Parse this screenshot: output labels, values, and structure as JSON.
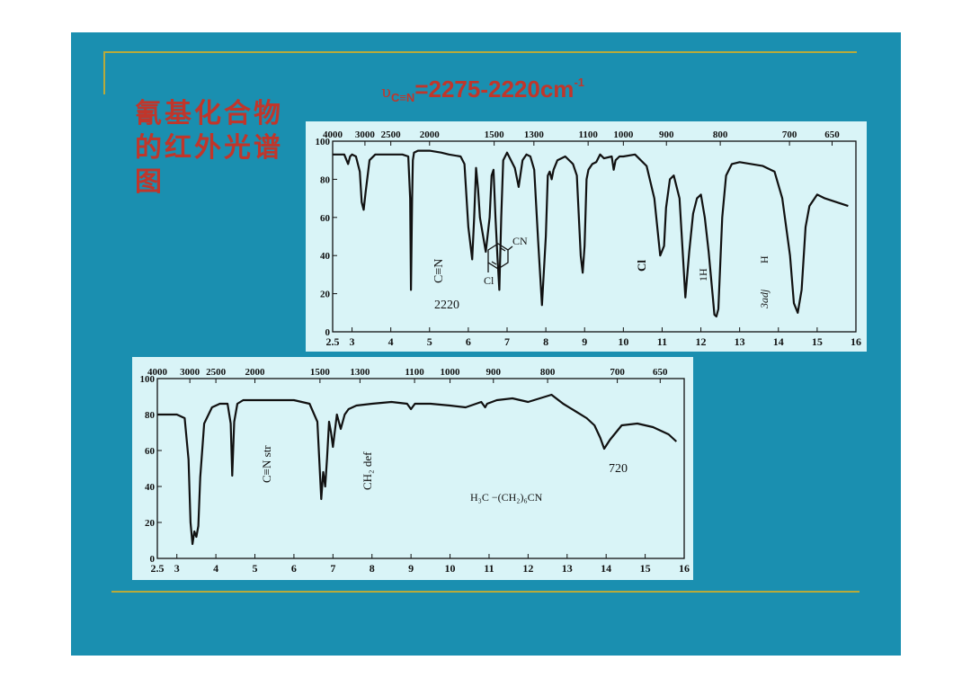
{
  "slide": {
    "title": "氰基化合物的红外光谱图",
    "formula": {
      "nu": "υ",
      "sub": "C≡N",
      "range": "=2275-2220cm",
      "sup": "-1"
    }
  },
  "colors": {
    "slide_bg": "#1a8fb0",
    "panel_bg": "#d9f4f7",
    "title": "#c0362b",
    "rule": "#b8aa3a",
    "line": "#111111"
  },
  "chart_data": [
    {
      "type": "line",
      "title": "",
      "xlabel": "",
      "ylabel": "",
      "x_axis_scale": "wavelength (µm)",
      "xlim": [
        2.5,
        16
      ],
      "ylim": [
        0,
        100
      ],
      "yticks": [
        "0",
        "20",
        "40",
        "60",
        "80",
        "100"
      ],
      "bottom_ticks": [
        {
          "x": 2.5,
          "label": "2.5"
        },
        {
          "x": 3,
          "label": "3"
        },
        {
          "x": 4,
          "label": "4"
        },
        {
          "x": 5,
          "label": "5"
        },
        {
          "x": 6,
          "label": "6"
        },
        {
          "x": 7,
          "label": "7"
        },
        {
          "x": 8,
          "label": "8"
        },
        {
          "x": 9,
          "label": "9"
        },
        {
          "x": 10,
          "label": "10"
        },
        {
          "x": 11,
          "label": "11"
        },
        {
          "x": 12,
          "label": "12"
        },
        {
          "x": 13,
          "label": "13"
        },
        {
          "x": 14,
          "label": "14"
        },
        {
          "x": 15,
          "label": "15"
        },
        {
          "x": 16,
          "label": "16"
        }
      ],
      "top_ticks": [
        {
          "x": 2.5,
          "label": "4000"
        },
        {
          "x": 3.333,
          "label": "3000"
        },
        {
          "x": 4.0,
          "label": "2500"
        },
        {
          "x": 5.0,
          "label": "2000"
        },
        {
          "x": 6.667,
          "label": "1500"
        },
        {
          "x": 7.692,
          "label": "1300"
        },
        {
          "x": 9.091,
          "label": "1100"
        },
        {
          "x": 10.0,
          "label": "1000"
        },
        {
          "x": 11.111,
          "label": "900"
        },
        {
          "x": 12.5,
          "label": "800"
        },
        {
          "x": 14.286,
          "label": "700"
        },
        {
          "x": 15.385,
          "label": "650"
        }
      ],
      "series": [
        {
          "x": [
            2.5,
            2.8,
            2.9,
            2.95,
            3.0,
            3.1,
            3.2,
            3.25,
            3.3,
            3.35,
            3.45,
            3.6,
            4.0,
            4.3,
            4.45,
            4.5,
            4.52,
            4.55,
            4.57,
            4.6,
            4.7,
            5.0,
            5.3,
            5.5,
            5.8,
            5.9,
            6.0,
            6.1,
            6.15,
            6.2,
            6.25,
            6.3,
            6.45,
            6.55,
            6.6,
            6.65,
            6.7,
            6.75,
            6.8,
            6.85,
            6.9,
            7.0,
            7.2,
            7.3,
            7.4,
            7.5,
            7.6,
            7.7,
            7.8,
            7.9,
            8.0,
            8.05,
            8.1,
            8.15,
            8.2,
            8.3,
            8.5,
            8.7,
            8.8,
            8.9,
            8.95,
            9.0,
            9.05,
            9.1,
            9.2,
            9.3,
            9.4,
            9.5,
            9.7,
            9.75,
            9.8,
            9.9,
            10.0,
            10.3,
            10.6,
            10.8,
            10.95,
            11.05,
            11.1,
            11.2,
            11.3,
            11.45,
            11.55,
            11.6,
            11.7,
            11.8,
            11.9,
            12.0,
            12.1,
            12.2,
            12.3,
            12.35,
            12.4,
            12.45,
            12.55,
            12.65,
            12.8,
            13.0,
            13.3,
            13.6,
            13.9,
            14.1,
            14.3,
            14.4,
            14.5,
            14.6,
            14.7,
            14.8,
            15.0,
            15.2,
            15.5,
            15.8
          ],
          "y": [
            93,
            93,
            88,
            92,
            93,
            92,
            84,
            68,
            64,
            73,
            90,
            93,
            93,
            93,
            92,
            70,
            22,
            70,
            90,
            94,
            95,
            95,
            94,
            93,
            92,
            88,
            55,
            38,
            60,
            86,
            75,
            60,
            42,
            60,
            82,
            85,
            60,
            40,
            22,
            60,
            90,
            94,
            86,
            76,
            90,
            93,
            92,
            85,
            48,
            14,
            50,
            82,
            84,
            80,
            85,
            90,
            92,
            88,
            82,
            40,
            31,
            45,
            80,
            85,
            88,
            89,
            93,
            91,
            92,
            85,
            90,
            92,
            92,
            93,
            87,
            70,
            40,
            45,
            65,
            80,
            82,
            70,
            35,
            18,
            42,
            62,
            70,
            72,
            60,
            42,
            20,
            9,
            8,
            12,
            60,
            82,
            88,
            89,
            88,
            87,
            84,
            70,
            40,
            15,
            10,
            22,
            55,
            66,
            72,
            70,
            68,
            66
          ]
        }
      ],
      "annotations": [
        {
          "text": "C≡N",
          "orientation": "vertical"
        },
        {
          "text": "2220"
        },
        {
          "text": "CN",
          "kind": "structure-substituent"
        },
        {
          "text": "Cl",
          "kind": "structure-substituent"
        },
        {
          "text": "Cl",
          "orientation": "vertical"
        },
        {
          "text": "1H",
          "orientation": "vertical"
        },
        {
          "text": "H",
          "orientation": "vertical"
        },
        {
          "text": "3adj",
          "orientation": "vertical"
        }
      ]
    },
    {
      "type": "line",
      "title": "",
      "xlabel": "",
      "ylabel": "",
      "x_axis_scale": "wavelength (µm)",
      "xlim": [
        2.5,
        16
      ],
      "ylim": [
        0,
        100
      ],
      "yticks": [
        "0",
        "20",
        "40",
        "60",
        "80",
        "100"
      ],
      "bottom_ticks": [
        {
          "x": 2.5,
          "label": "2.5"
        },
        {
          "x": 3,
          "label": "3"
        },
        {
          "x": 4,
          "label": "4"
        },
        {
          "x": 5,
          "label": "5"
        },
        {
          "x": 6,
          "label": "6"
        },
        {
          "x": 7,
          "label": "7"
        },
        {
          "x": 8,
          "label": "8"
        },
        {
          "x": 9,
          "label": "9"
        },
        {
          "x": 10,
          "label": "10"
        },
        {
          "x": 11,
          "label": "11"
        },
        {
          "x": 12,
          "label": "12"
        },
        {
          "x": 13,
          "label": "13"
        },
        {
          "x": 14,
          "label": "14"
        },
        {
          "x": 15,
          "label": "15"
        },
        {
          "x": 16,
          "label": "16"
        }
      ],
      "top_ticks": [
        {
          "x": 2.5,
          "label": "4000"
        },
        {
          "x": 3.333,
          "label": "3000"
        },
        {
          "x": 4.0,
          "label": "2500"
        },
        {
          "x": 5.0,
          "label": "2000"
        },
        {
          "x": 6.667,
          "label": "1500"
        },
        {
          "x": 7.692,
          "label": "1300"
        },
        {
          "x": 9.091,
          "label": "1100"
        },
        {
          "x": 10.0,
          "label": "1000"
        },
        {
          "x": 11.111,
          "label": "900"
        },
        {
          "x": 12.5,
          "label": "800"
        },
        {
          "x": 14.286,
          "label": "700"
        },
        {
          "x": 15.385,
          "label": "650"
        }
      ],
      "series": [
        {
          "x": [
            2.5,
            3.0,
            3.2,
            3.3,
            3.35,
            3.4,
            3.45,
            3.5,
            3.55,
            3.6,
            3.7,
            3.9,
            4.1,
            4.3,
            4.38,
            4.42,
            4.47,
            4.55,
            4.7,
            5.0,
            5.5,
            6.0,
            6.4,
            6.6,
            6.7,
            6.75,
            6.8,
            6.85,
            6.9,
            6.95,
            7.0,
            7.1,
            7.2,
            7.3,
            7.4,
            7.6,
            8.0,
            8.5,
            8.9,
            9.0,
            9.1,
            9.5,
            10.0,
            10.4,
            10.8,
            10.9,
            10.95,
            11.2,
            11.6,
            12.0,
            12.3,
            12.6,
            12.9,
            13.2,
            13.5,
            13.7,
            13.85,
            13.95,
            14.1,
            14.4,
            14.8,
            15.2,
            15.6,
            15.8
          ],
          "y": [
            80,
            80,
            78,
            55,
            20,
            8,
            15,
            12,
            18,
            45,
            75,
            84,
            86,
            86,
            75,
            46,
            76,
            86,
            88,
            88,
            88,
            88,
            86,
            76,
            33,
            48,
            40,
            56,
            76,
            70,
            62,
            80,
            72,
            80,
            83,
            85,
            86,
            87,
            86,
            83,
            86,
            86,
            85,
            84,
            87,
            84,
            86,
            88,
            89,
            87,
            89,
            91,
            86,
            82,
            78,
            74,
            67,
            61,
            66,
            74,
            75,
            73,
            69,
            65
          ]
        }
      ],
      "annotations": [
        {
          "text": "C≡N str",
          "orientation": "vertical"
        },
        {
          "text": "CH₂ def",
          "orientation": "vertical"
        },
        {
          "text": "720"
        },
        {
          "text": "H₃C −(CH₂)₆CN"
        }
      ]
    }
  ]
}
